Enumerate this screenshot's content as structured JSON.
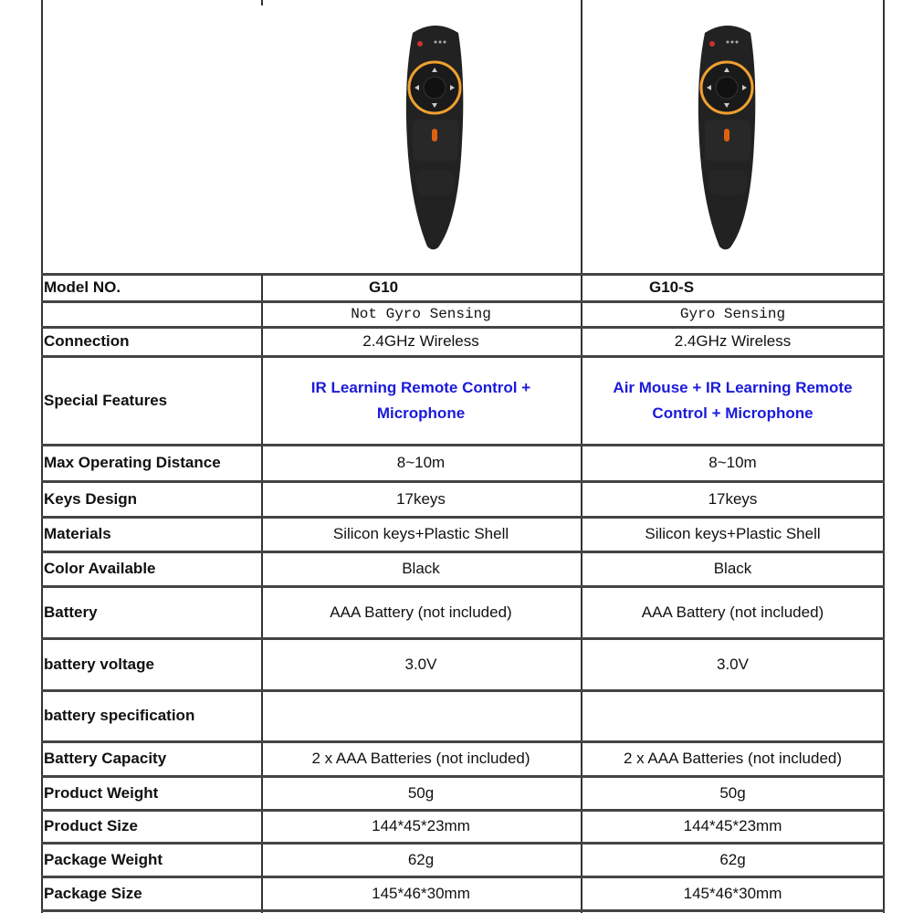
{
  "products": [
    {
      "image": "remote-control-black-orange-ring",
      "model": "G10"
    },
    {
      "image": "remote-control-black-orange-ring",
      "model": "G10-S"
    }
  ],
  "table": {
    "rows": [
      {
        "label": "Model NO.",
        "values": [
          "G10",
          "G10-S"
        ],
        "style": "model"
      },
      {
        "label": "",
        "values": [
          "Not Gyro Sensing",
          "Gyro Sensing"
        ],
        "style": "mono"
      },
      {
        "label": "Connection",
        "values": [
          "2.4GHz Wireless",
          "2.4GHz Wireless"
        ]
      },
      {
        "label": "Special Features",
        "values": [
          "IR Learning Remote Control + Microphone",
          "Air Mouse +  IR Learning Remote Control + Microphone"
        ],
        "style": "blue"
      },
      {
        "label": "Max Operating Distance",
        "values": [
          "8~10m",
          "8~10m"
        ]
      },
      {
        "label": "Keys Design",
        "values": [
          "17keys",
          "17keys"
        ]
      },
      {
        "label": "Materials",
        "values": [
          "Silicon keys+Plastic Shell",
          "Silicon keys+Plastic Shell"
        ]
      },
      {
        "label": "Color Available",
        "values": [
          "Black",
          "Black"
        ]
      },
      {
        "label": "Battery",
        "values": [
          "AAA Battery (not included)",
          "AAA Battery (not included)"
        ]
      },
      {
        "label": "battery voltage",
        "values": [
          "3.0V",
          "3.0V"
        ]
      },
      {
        "label": "battery specification",
        "values": [
          "",
          ""
        ]
      },
      {
        "label": "Battery Capacity",
        "values": [
          "2 x AAA Batteries (not included)",
          "2 x AAA Batteries (not included)"
        ]
      },
      {
        "label": "Product Weight",
        "values": [
          "50g",
          "50g"
        ]
      },
      {
        "label": "Product Size",
        "values": [
          "144*45*23mm",
          "144*45*23mm"
        ]
      },
      {
        "label": "Package Weight",
        "values": [
          "62g",
          "62g"
        ]
      },
      {
        "label": "Package Size",
        "values": [
          "145*46*30mm",
          "145*46*30mm"
        ]
      }
    ]
  },
  "colors": {
    "feature_text": "#1a1adc",
    "ring": "#f0a030",
    "remote_body": "#222222"
  }
}
